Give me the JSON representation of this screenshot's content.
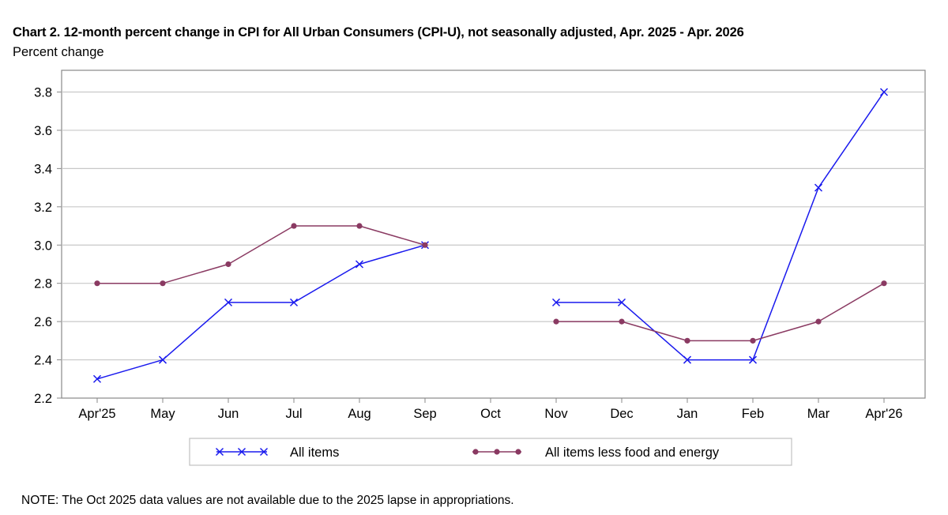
{
  "chart_data": {
    "type": "line",
    "title": "Chart 2. 12-month percent change in CPI for All Urban Consumers (CPI-U), not seasonally adjusted, Apr. 2025 - Apr. 2026",
    "ylabel": "Percent change",
    "xlabel": "",
    "categories": [
      "Apr'25",
      "May",
      "Jun",
      "Jul",
      "Aug",
      "Sep",
      "Oct",
      "Nov",
      "Dec",
      "Jan",
      "Feb",
      "Mar",
      "Apr'26"
    ],
    "y_ticks": [
      "2.2",
      "2.4",
      "2.6",
      "2.8",
      "3.0",
      "3.2",
      "3.4",
      "3.6",
      "3.8"
    ],
    "ylim": [
      2.2,
      3.9
    ],
    "grid": "horizontal",
    "legend_position": "bottom",
    "series": [
      {
        "name": "All items",
        "color": "#1a1aee",
        "marker": "x",
        "values": [
          2.3,
          2.4,
          2.7,
          2.7,
          2.9,
          3.0,
          null,
          2.7,
          2.7,
          2.4,
          2.4,
          3.3,
          3.8
        ]
      },
      {
        "name": "All items less food and energy",
        "color": "#8a3a62",
        "marker": "dot",
        "values": [
          2.8,
          2.8,
          2.9,
          3.1,
          3.1,
          3.0,
          null,
          2.6,
          2.6,
          2.5,
          2.5,
          2.6,
          2.8
        ]
      }
    ],
    "note": "NOTE: The Oct 2025 data values are not available due to the 2025 lapse in appropriations."
  }
}
